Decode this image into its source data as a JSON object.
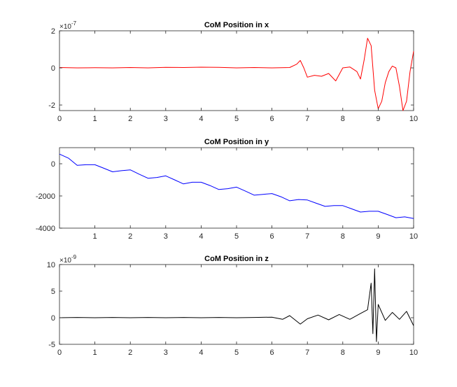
{
  "chart_data": [
    {
      "type": "line",
      "title": "CoM Position in x",
      "xlim": [
        0,
        10
      ],
      "ylim": [
        -2.3,
        2.0
      ],
      "x_ticks": [
        "0",
        "1",
        "2",
        "3",
        "4",
        "5",
        "6",
        "7",
        "8",
        "9",
        "10"
      ],
      "y_ticks": [
        "-2",
        "0",
        "2"
      ],
      "y_tick_values": [
        -2,
        0,
        2
      ],
      "y_exponent": "×10",
      "y_exponent_power": "-7",
      "grid": false,
      "series": [
        {
          "color": "#ff0000",
          "x": [
            0,
            0.5,
            1,
            1.5,
            2,
            2.5,
            3,
            3.5,
            4,
            4.5,
            5,
            5.5,
            6,
            6.5,
            6.7,
            6.8,
            6.9,
            7.0,
            7.2,
            7.4,
            7.6,
            7.8,
            8.0,
            8.2,
            8.4,
            8.5,
            8.6,
            8.7,
            8.8,
            8.9,
            9.0,
            9.1,
            9.2,
            9.3,
            9.4,
            9.5,
            9.6,
            9.7,
            9.8,
            9.9,
            10.0
          ],
          "y": [
            0.02,
            0.0,
            0.01,
            0.0,
            0.02,
            0.0,
            0.03,
            0.02,
            0.04,
            0.03,
            0.0,
            0.02,
            0.0,
            0.02,
            0.2,
            0.4,
            0.0,
            -0.5,
            -0.4,
            -0.45,
            -0.3,
            -0.7,
            0.0,
            0.05,
            -0.2,
            -0.6,
            0.4,
            1.6,
            1.2,
            -1.2,
            -2.2,
            -1.8,
            -0.8,
            -0.2,
            0.1,
            0.0,
            -1.0,
            -2.3,
            -1.8,
            -0.2,
            0.9
          ]
        }
      ]
    },
    {
      "type": "line",
      "title": "CoM Position in y",
      "xlim": [
        0,
        10
      ],
      "ylim": [
        -4000,
        1000
      ],
      "x_ticks": [
        "1",
        "2",
        "3",
        "4",
        "5",
        "6",
        "7",
        "8",
        "9",
        "10"
      ],
      "y_ticks": [
        "-4000",
        "-2000",
        "0"
      ],
      "y_tick_values": [
        -4000,
        -2000,
        0
      ],
      "grid": false,
      "series": [
        {
          "color": "#0000ff",
          "x": [
            0,
            0.25,
            0.5,
            0.75,
            1.0,
            1.25,
            1.5,
            1.75,
            2.0,
            2.25,
            2.5,
            2.75,
            3.0,
            3.25,
            3.5,
            3.75,
            4.0,
            4.25,
            4.5,
            4.75,
            5.0,
            5.25,
            5.5,
            5.75,
            6.0,
            6.25,
            6.5,
            6.75,
            7.0,
            7.25,
            7.5,
            7.75,
            8.0,
            8.25,
            8.5,
            8.75,
            9.0,
            9.25,
            9.5,
            9.75,
            10.0
          ],
          "y": [
            600,
            350,
            -100,
            -60,
            -60,
            -280,
            -500,
            -430,
            -380,
            -650,
            -900,
            -850,
            -750,
            -1000,
            -1250,
            -1150,
            -1150,
            -1350,
            -1600,
            -1550,
            -1450,
            -1700,
            -1950,
            -1900,
            -1850,
            -2050,
            -2300,
            -2220,
            -2250,
            -2450,
            -2650,
            -2600,
            -2600,
            -2800,
            -3000,
            -2950,
            -2950,
            -3150,
            -3350,
            -3300,
            -3400
          ]
        }
      ]
    },
    {
      "type": "line",
      "title": "CoM Position in z",
      "xlim": [
        0,
        10
      ],
      "ylim": [
        -5,
        10
      ],
      "x_ticks": [
        "0",
        "1",
        "2",
        "3",
        "4",
        "5",
        "6",
        "7",
        "8",
        "9",
        "10"
      ],
      "y_ticks": [
        "-5",
        "0",
        "5",
        "10"
      ],
      "y_tick_values": [
        -5,
        0,
        5,
        10
      ],
      "y_exponent": "×10",
      "y_exponent_power": "-9",
      "grid": false,
      "series": [
        {
          "color": "#000000",
          "x": [
            0,
            0.5,
            1,
            1.5,
            2,
            2.5,
            3,
            3.5,
            4,
            4.5,
            5,
            5.5,
            6,
            6.3,
            6.5,
            6.8,
            7.0,
            7.3,
            7.6,
            7.9,
            8.2,
            8.5,
            8.7,
            8.8,
            8.85,
            8.9,
            8.95,
            9.0,
            9.2,
            9.4,
            9.6,
            9.8,
            10.0
          ],
          "y": [
            0.0,
            0.05,
            0.0,
            0.05,
            0.0,
            0.05,
            0.0,
            0.05,
            0.0,
            0.05,
            0.0,
            0.05,
            0.1,
            -0.3,
            0.4,
            -1.2,
            -0.2,
            0.5,
            -0.4,
            0.6,
            -0.3,
            0.8,
            1.5,
            6.5,
            -3.0,
            9.2,
            -4.5,
            2.5,
            -0.5,
            1.0,
            -0.3,
            1.2,
            -1.5
          ]
        }
      ]
    }
  ]
}
